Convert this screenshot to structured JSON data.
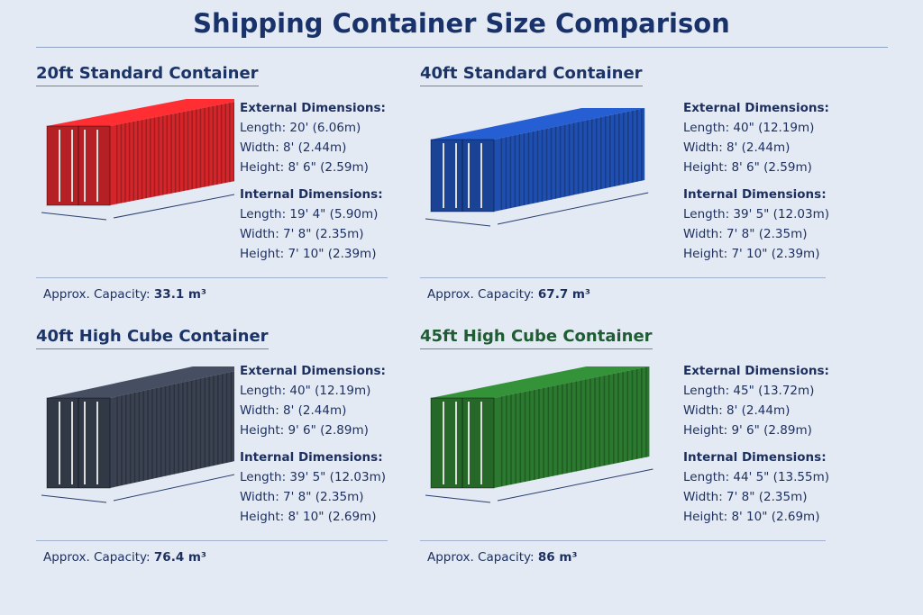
{
  "title": "Shipping Container Size Comparison",
  "labels": {
    "external": "External Dimensions:",
    "internal": "Internal Dimensions:",
    "capacity": "Approx. Capacity:"
  },
  "containers": [
    {
      "name": "20ft Standard Container",
      "color": "#d4262a",
      "ext": [
        "Length: 20' (6.06m)",
        "Width: 8' (2.44m)",
        "Height: 8' 6\" (2.59m)"
      ],
      "int": [
        "Length: 19' 4\" (5.90m)",
        "Width: 7' 8\" (2.35m)",
        "Height: 7' 10\" (2.39m)"
      ],
      "capacity": "33.1 m³"
    },
    {
      "name": "40ft Standard Container",
      "color": "#1f4fb0",
      "ext": [
        "Length: 40\" (12.19m)",
        "Width: 8' (2.44m)",
        "Height: 8' 6\" (2.59m)"
      ],
      "int": [
        "Length: 39' 5\" (12.03m)",
        "Width: 7' 8\" (2.35m)",
        "Height: 7' 10\" (2.39m)"
      ],
      "capacity": "67.7 m³"
    },
    {
      "name": "40ft High Cube Container",
      "color": "#3a4252",
      "ext": [
        "Length: 40\" (12.19m)",
        "Width: 8' (2.44m)",
        "Height: 9' 6\" (2.89m)"
      ],
      "int": [
        "Length: 39' 5\" (12.03m)",
        "Width: 7' 8\" (2.35m)",
        "Height: 8' 10\" (2.69m)"
      ],
      "capacity": "76.4 m³"
    },
    {
      "name": "45ft High Cube Container",
      "color": "#2b7a2f",
      "ext": [
        "Length: 45\" (13.72m)",
        "Width: 8' (2.44m)",
        "Height: 9' 6\" (2.89m)"
      ],
      "int": [
        "Length: 44' 5\" (13.55m)",
        "Width: 7' 8\" (2.35m)",
        "Height: 8' 10\" (2.69m)"
      ],
      "capacity": "86 m³"
    }
  ]
}
